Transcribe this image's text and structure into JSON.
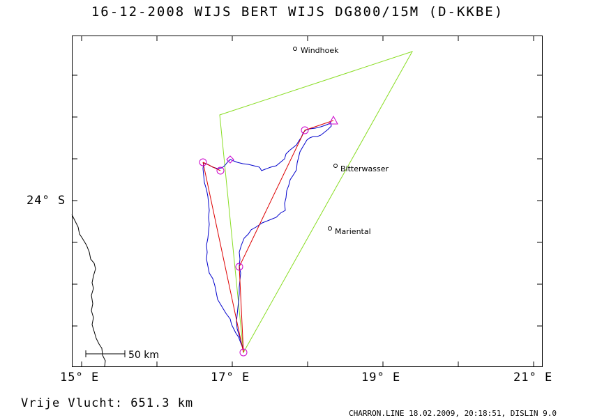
{
  "title": "16-12-2008   WIJS BERT WIJS   DG800/15M (D-KKBE)",
  "axes": {
    "x_labels": [
      "15° E",
      "17° E",
      "19° E",
      "21° E"
    ],
    "y_label": "24° S"
  },
  "places": [
    {
      "name": "Windhoek"
    },
    {
      "name": "Bitterwasser"
    },
    {
      "name": "Mariental"
    }
  ],
  "scale_bar": {
    "label": "50 km"
  },
  "footer": {
    "left": "Vrije Vlucht:  651.3 km",
    "right": "CHARRON.LINE 18.02.2009, 20:18:51, DISLIN 9.0"
  },
  "colors": {
    "task_triangle": "#88dd22",
    "track": "#0000cc",
    "optimized_legs": "#dd0000",
    "turnpoints": "#cc00cc",
    "coast": "#000000"
  }
}
